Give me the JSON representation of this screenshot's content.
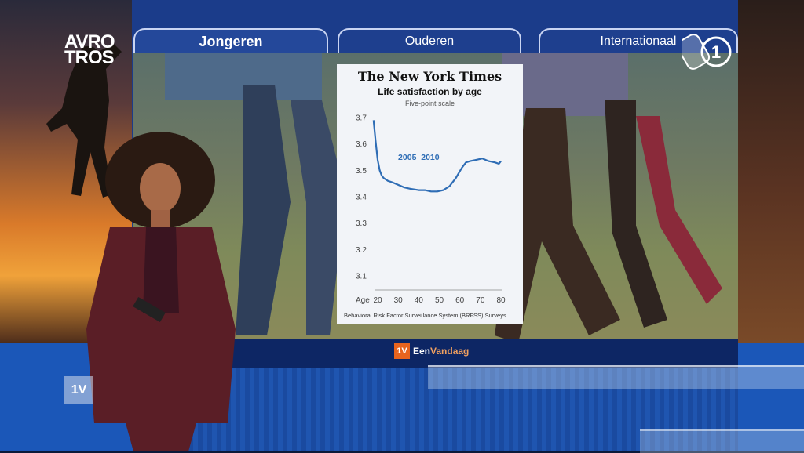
{
  "broadcast": {
    "logo_lines": [
      "AVRO",
      "TROS"
    ],
    "network_logo": "npo-1",
    "program": {
      "badge": "1V",
      "name_part1": "Een",
      "name_part2": "Vandaag"
    },
    "watermark": "1V"
  },
  "tabs": [
    {
      "label": "Jongeren",
      "active": true
    },
    {
      "label": "Ouderen",
      "active": false
    },
    {
      "label": "Internationaal",
      "active": false
    }
  ],
  "card": {
    "publisher": "The New York Times",
    "title": "Life satisfaction by age",
    "subtitle": "Five-point scale",
    "source": "Behavioral Risk Factor Surveillance System (BRFSS) Surveys"
  },
  "chart_data": {
    "type": "line",
    "title": "Life satisfaction by age",
    "subtitle": "Five-point scale",
    "xlabel": "Age",
    "ylabel": "",
    "xlim": [
      20,
      80
    ],
    "ylim": [
      3.1,
      3.7
    ],
    "x_ticks": [
      20,
      30,
      40,
      50,
      60,
      70,
      80
    ],
    "y_ticks": [
      3.1,
      3.2,
      3.3,
      3.4,
      3.5,
      3.6,
      3.7
    ],
    "grid": false,
    "series": [
      {
        "name": "2005–2010",
        "color": "#2f6db5",
        "x": [
          18,
          19,
          20,
          21,
          22,
          23,
          24,
          25,
          27,
          30,
          33,
          36,
          40,
          43,
          46,
          49,
          52,
          55,
          58,
          61,
          63,
          65,
          68,
          71,
          74,
          77,
          79,
          80
        ],
        "y": [
          3.69,
          3.61,
          3.54,
          3.5,
          3.48,
          3.47,
          3.465,
          3.46,
          3.455,
          3.445,
          3.435,
          3.43,
          3.425,
          3.425,
          3.42,
          3.42,
          3.425,
          3.44,
          3.47,
          3.51,
          3.53,
          3.535,
          3.54,
          3.545,
          3.535,
          3.53,
          3.525,
          3.535
        ]
      }
    ],
    "annotation": "2005–2010"
  },
  "colors": {
    "screen_blue": "#1b3c8a",
    "line_blue": "#2f6db5",
    "program_orange": "#e8641e"
  }
}
